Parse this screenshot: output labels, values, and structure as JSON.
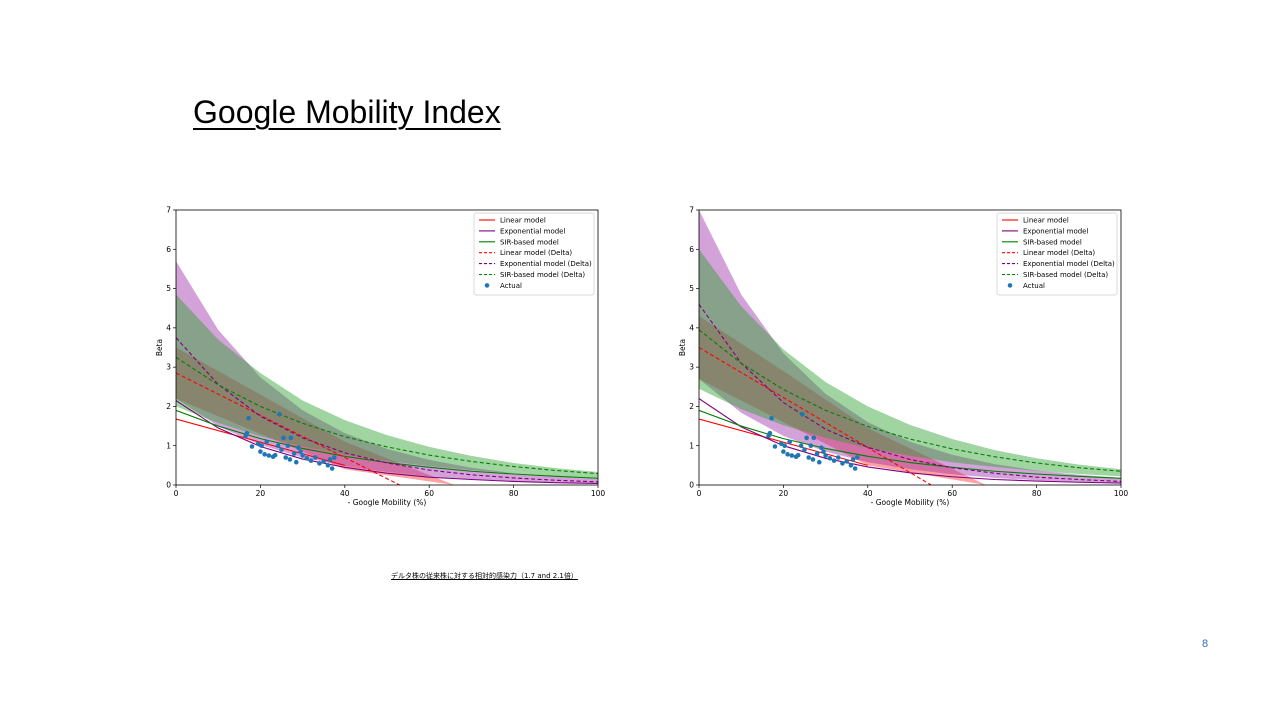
{
  "slide": {
    "title": "Google Mobility Index",
    "caption": "デルタ株の従来株に対する相対的感染力（1.7 and 2.1倍）",
    "page_number": "8"
  },
  "colors": {
    "linear": "#ff0000",
    "exponential": "#800080",
    "sir": "#008000",
    "actual": "#1f77b4",
    "linear_band": "#ff3030",
    "exponential_band": "#9b30a8",
    "sir_band": "#2ca02c"
  },
  "chart_data": [
    {
      "type": "line",
      "xlabel": "- Google Mobility (%)",
      "ylabel": "Beta",
      "xlim": [
        0,
        100
      ],
      "ylim": [
        0,
        7
      ],
      "xticks": [
        0,
        20,
        40,
        60,
        80,
        100
      ],
      "yticks": [
        0,
        1,
        2,
        3,
        4,
        5,
        6,
        7
      ],
      "legend_position": "top-right",
      "legend": [
        {
          "label": "Linear model",
          "style": "solid",
          "color": "#ff0000"
        },
        {
          "label": "Exponential model",
          "style": "solid",
          "color": "#800080"
        },
        {
          "label": "SIR-based model",
          "style": "solid",
          "color": "#008000"
        },
        {
          "label": "Linear model (Delta)",
          "style": "dashed",
          "color": "#ff0000"
        },
        {
          "label": "Exponential model (Delta)",
          "style": "dashed",
          "color": "#800080"
        },
        {
          "label": "SIR-based model (Delta)",
          "style": "dashed",
          "color": "#008000"
        },
        {
          "label": "Actual",
          "style": "marker",
          "color": "#1f77b4"
        }
      ],
      "x": [
        0,
        10,
        20,
        30,
        40,
        50,
        60,
        70,
        80,
        90,
        100
      ],
      "series": [
        {
          "name": "Linear model",
          "style": "solid",
          "color": "#ff0000",
          "x": [
            0,
            40
          ],
          "values": [
            1.68,
            0.5
          ]
        },
        {
          "name": "Exponential model",
          "style": "solid",
          "color": "#800080",
          "values": [
            2.15,
            1.45,
            0.98,
            0.66,
            0.45,
            0.3,
            0.2,
            0.14,
            0.09,
            0.06,
            0.04
          ]
        },
        {
          "name": "SIR-based model",
          "style": "solid",
          "color": "#008000",
          "values": [
            1.9,
            1.5,
            1.18,
            0.93,
            0.73,
            0.57,
            0.45,
            0.35,
            0.28,
            0.22,
            0.17
          ]
        },
        {
          "name": "Linear model (Delta)",
          "style": "dashed",
          "color": "#ff0000",
          "x": [
            0,
            53
          ],
          "values": [
            2.85,
            0
          ]
        },
        {
          "name": "Exponential model (Delta)",
          "style": "dashed",
          "color": "#800080",
          "values": [
            3.75,
            2.56,
            1.75,
            1.2,
            0.82,
            0.56,
            0.38,
            0.26,
            0.18,
            0.12,
            0.08
          ]
        },
        {
          "name": "SIR-based model (Delta)",
          "style": "dashed",
          "color": "#008000",
          "values": [
            3.25,
            2.55,
            2.0,
            1.57,
            1.23,
            0.97,
            0.76,
            0.6,
            0.47,
            0.37,
            0.29
          ]
        }
      ],
      "bands": [
        {
          "model": "Linear model (Delta)",
          "color": "#ff3030",
          "x": [
            0,
            20,
            40,
            66
          ],
          "lower": [
            2.2,
            1.3,
            0.4,
            0.0
          ],
          "upper": [
            3.5,
            2.3,
            1.1,
            0.0
          ]
        },
        {
          "model": "Exponential model (Delta)",
          "color": "#9b30a8",
          "x": [
            0,
            10,
            20,
            30,
            40,
            50,
            60,
            70,
            80,
            90,
            100
          ],
          "lower": [
            2.2,
            1.5,
            1.02,
            0.7,
            0.48,
            0.33,
            0.22,
            0.15,
            0.1,
            0.07,
            0.05
          ],
          "upper": [
            5.7,
            3.95,
            2.74,
            1.9,
            1.32,
            0.92,
            0.64,
            0.44,
            0.3,
            0.21,
            0.15
          ]
        },
        {
          "model": "SIR-based model (Delta)",
          "color": "#2ca02c",
          "x": [
            0,
            10,
            20,
            30,
            40,
            50,
            60,
            70,
            80,
            90,
            100
          ],
          "lower": [
            2.0,
            1.58,
            1.24,
            0.98,
            0.77,
            0.61,
            0.48,
            0.38,
            0.3,
            0.23,
            0.18
          ],
          "upper": [
            4.85,
            3.7,
            2.85,
            2.15,
            1.65,
            1.27,
            0.97,
            0.74,
            0.56,
            0.43,
            0.33
          ]
        }
      ],
      "actual": [
        [
          16.5,
          1.25
        ],
        [
          16.8,
          1.32
        ],
        [
          17.2,
          1.7
        ],
        [
          18,
          0.98
        ],
        [
          19.5,
          1.05
        ],
        [
          20,
          0.85
        ],
        [
          20.3,
          1.0
        ],
        [
          21,
          0.78
        ],
        [
          21.5,
          1.1
        ],
        [
          22,
          0.75
        ],
        [
          23,
          0.72
        ],
        [
          23.5,
          0.76
        ],
        [
          24.2,
          1.0
        ],
        [
          24.5,
          1.8
        ],
        [
          25,
          0.9
        ],
        [
          25.5,
          1.2
        ],
        [
          26,
          0.7
        ],
        [
          26.5,
          1.0
        ],
        [
          27,
          0.65
        ],
        [
          27.2,
          1.2
        ],
        [
          28,
          0.8
        ],
        [
          28.5,
          0.58
        ],
        [
          29,
          0.95
        ],
        [
          29.5,
          0.85
        ],
        [
          30,
          0.75
        ],
        [
          31,
          0.68
        ],
        [
          32,
          0.62
        ],
        [
          33,
          0.7
        ],
        [
          34,
          0.55
        ],
        [
          35,
          0.6
        ],
        [
          36,
          0.5
        ],
        [
          36.5,
          0.65
        ],
        [
          37,
          0.42
        ],
        [
          37.5,
          0.7
        ]
      ]
    },
    {
      "type": "line",
      "xlabel": "- Google Mobility (%)",
      "ylabel": "Beta",
      "xlim": [
        0,
        100
      ],
      "ylim": [
        0,
        7
      ],
      "xticks": [
        0,
        20,
        40,
        60,
        80,
        100
      ],
      "yticks": [
        0,
        1,
        2,
        3,
        4,
        5,
        6,
        7
      ],
      "legend_position": "top-right",
      "legend": [
        {
          "label": "Linear model",
          "style": "solid",
          "color": "#ff0000"
        },
        {
          "label": "Exponential model",
          "style": "solid",
          "color": "#800080"
        },
        {
          "label": "SIR-based model",
          "style": "solid",
          "color": "#008000"
        },
        {
          "label": "Linear model (Delta)",
          "style": "dashed",
          "color": "#ff0000"
        },
        {
          "label": "Exponential model (Delta)",
          "style": "dashed",
          "color": "#800080"
        },
        {
          "label": "SIR-based model (Delta)",
          "style": "dashed",
          "color": "#008000"
        },
        {
          "label": "Actual",
          "style": "marker",
          "color": "#1f77b4"
        }
      ],
      "x": [
        0,
        10,
        20,
        30,
        40,
        50,
        60,
        70,
        80,
        90,
        100
      ],
      "series": [
        {
          "name": "Linear model",
          "style": "solid",
          "color": "#ff0000",
          "x": [
            0,
            40
          ],
          "values": [
            1.68,
            0.5
          ]
        },
        {
          "name": "Exponential model",
          "style": "solid",
          "color": "#800080",
          "values": [
            2.2,
            1.48,
            1.0,
            0.68,
            0.46,
            0.31,
            0.21,
            0.14,
            0.1,
            0.07,
            0.05
          ]
        },
        {
          "name": "SIR-based model",
          "style": "solid",
          "color": "#008000",
          "values": [
            1.9,
            1.5,
            1.18,
            0.93,
            0.73,
            0.57,
            0.45,
            0.35,
            0.28,
            0.22,
            0.17
          ]
        },
        {
          "name": "Linear model (Delta)",
          "style": "dashed",
          "color": "#ff0000",
          "x": [
            0,
            55
          ],
          "values": [
            3.5,
            0
          ]
        },
        {
          "name": "Exponential model (Delta)",
          "style": "dashed",
          "color": "#800080",
          "values": [
            4.6,
            3.1,
            2.1,
            1.42,
            0.96,
            0.65,
            0.44,
            0.3,
            0.2,
            0.14,
            0.09
          ]
        },
        {
          "name": "SIR-based model (Delta)",
          "style": "dashed",
          "color": "#008000",
          "values": [
            3.95,
            3.1,
            2.43,
            1.9,
            1.49,
            1.17,
            0.92,
            0.72,
            0.56,
            0.44,
            0.35
          ]
        }
      ],
      "bands": [
        {
          "model": "Linear model (Delta)",
          "color": "#ff3030",
          "x": [
            0,
            20,
            40,
            68
          ],
          "lower": [
            2.7,
            1.6,
            0.5,
            0.0
          ],
          "upper": [
            4.3,
            2.9,
            1.45,
            0.0
          ]
        },
        {
          "model": "Exponential model (Delta)",
          "color": "#9b30a8",
          "x": [
            0,
            10,
            20,
            30,
            40,
            50,
            60,
            70,
            80,
            90,
            100
          ],
          "lower": [
            2.7,
            1.84,
            1.25,
            0.85,
            0.58,
            0.4,
            0.27,
            0.18,
            0.12,
            0.08,
            0.06
          ],
          "upper": [
            7.0,
            4.85,
            3.35,
            2.32,
            1.6,
            1.1,
            0.77,
            0.53,
            0.37,
            0.26,
            0.18
          ]
        },
        {
          "model": "SIR-based model (Delta)",
          "color": "#2ca02c",
          "x": [
            0,
            10,
            20,
            30,
            40,
            50,
            60,
            70,
            80,
            90,
            100
          ],
          "lower": [
            2.45,
            1.93,
            1.52,
            1.2,
            0.94,
            0.74,
            0.58,
            0.46,
            0.36,
            0.28,
            0.22
          ],
          "upper": [
            6.0,
            4.55,
            3.45,
            2.62,
            2.0,
            1.53,
            1.17,
            0.89,
            0.68,
            0.52,
            0.4
          ]
        }
      ],
      "actual": [
        [
          16.5,
          1.25
        ],
        [
          16.8,
          1.32
        ],
        [
          17.2,
          1.7
        ],
        [
          18,
          0.98
        ],
        [
          19.5,
          1.05
        ],
        [
          20,
          0.85
        ],
        [
          20.3,
          1.0
        ],
        [
          21,
          0.78
        ],
        [
          21.5,
          1.1
        ],
        [
          22,
          0.75
        ],
        [
          23,
          0.72
        ],
        [
          23.5,
          0.76
        ],
        [
          24.2,
          1.0
        ],
        [
          24.5,
          1.8
        ],
        [
          25,
          0.9
        ],
        [
          25.5,
          1.2
        ],
        [
          26,
          0.7
        ],
        [
          26.5,
          1.0
        ],
        [
          27,
          0.65
        ],
        [
          27.2,
          1.2
        ],
        [
          28,
          0.8
        ],
        [
          28.5,
          0.58
        ],
        [
          29,
          0.95
        ],
        [
          29.5,
          0.85
        ],
        [
          30,
          0.75
        ],
        [
          31,
          0.68
        ],
        [
          32,
          0.62
        ],
        [
          33,
          0.7
        ],
        [
          34,
          0.55
        ],
        [
          35,
          0.6
        ],
        [
          36,
          0.5
        ],
        [
          36.5,
          0.65
        ],
        [
          37,
          0.42
        ],
        [
          37.5,
          0.7
        ]
      ]
    }
  ]
}
